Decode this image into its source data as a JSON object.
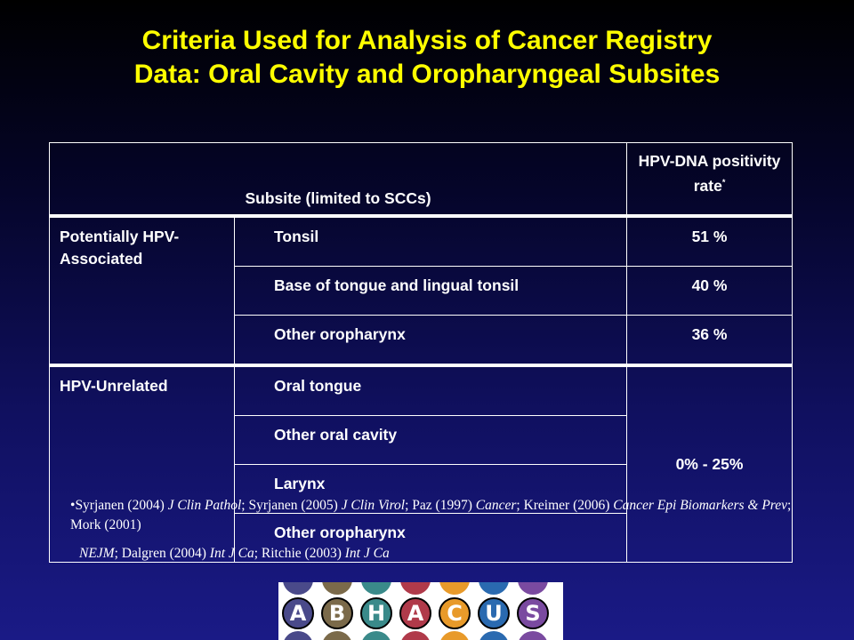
{
  "title": {
    "line1": "Criteria Used for Analysis of Cancer Registry",
    "line2": "Data: Oral Cavity and Oropharyngeal Subsites"
  },
  "table": {
    "header": {
      "subsite": "Subsite (limited to SCCs)",
      "rate": "HPV-DNA positivity rate",
      "rate_mark": "*"
    },
    "groups": [
      {
        "label": "Potentially HPV-Associated",
        "rows": [
          {
            "site": "Tonsil",
            "rate": "51 %"
          },
          {
            "site": "Base of tongue and lingual tonsil",
            "rate": "40 %"
          },
          {
            "site": "Other oropharynx",
            "rate": "36 %"
          }
        ]
      },
      {
        "label": "HPV-Unrelated",
        "rate": "0% - 25%",
        "rows": [
          {
            "site": "Oral tongue"
          },
          {
            "site": "Other oral cavity"
          },
          {
            "site": "Larynx"
          },
          {
            "site": "Other oropharynx"
          }
        ]
      }
    ]
  },
  "references": {
    "bullet": "•",
    "r1_author": "Syrjanen (2004)",
    "r1_journal": "J Clin Pathol",
    "r2_author": "; Syrjanen (2005)",
    "r2_journal": "J Clin Virol",
    "r3_author": "; Paz (1997)",
    "r3_journal": "Cancer",
    "r4_author": "; Kreimer (2006)",
    "r4_journal": "Cancer Epi Biomarkers & Prev",
    "r5_author": "; Mork (2001)",
    "r5_journal": "NEJM",
    "r6_author": "; Dalgren (2004)",
    "r6_journal": "Int J Ca",
    "r7_author": "; Ritchie (2003)",
    "r7_journal": "Int J Ca"
  },
  "logo": {
    "letters": [
      "A",
      "B",
      "H",
      "A",
      "C",
      "U",
      "S"
    ],
    "colors": [
      "#4a4a8a",
      "#7b6a4a",
      "#3a8a8a",
      "#b03a4a",
      "#e89a2a",
      "#2a6ab0",
      "#7a4aa0"
    ]
  }
}
